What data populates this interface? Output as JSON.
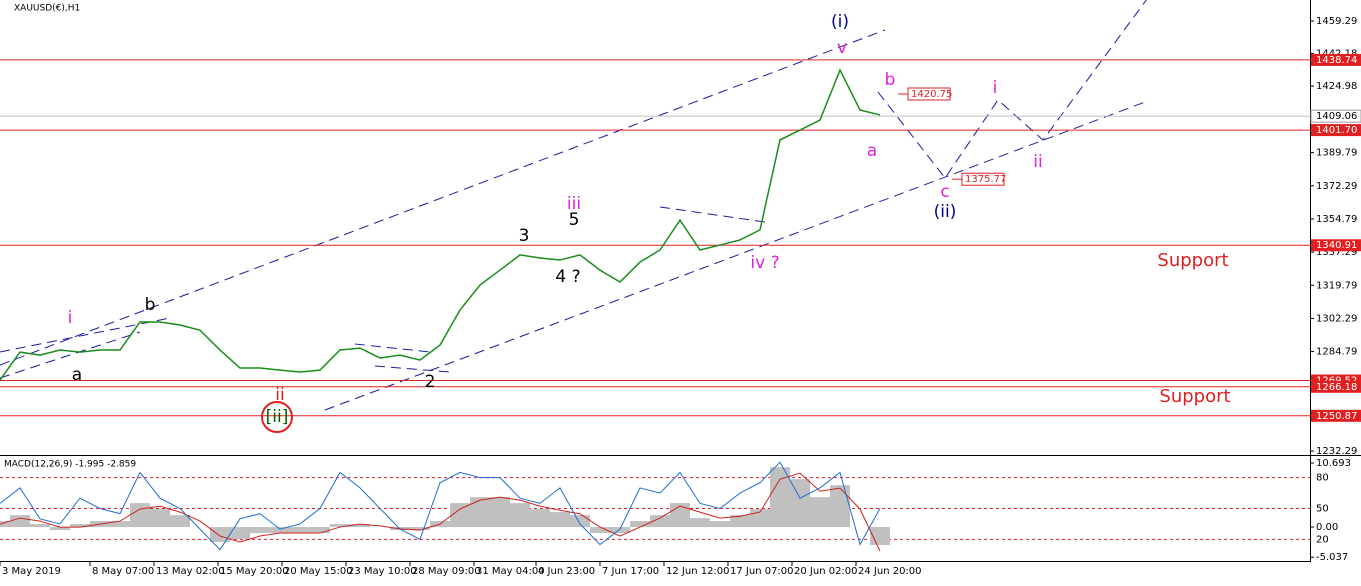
{
  "chart_data": [
    {
      "type": "line",
      "title": "XAUUSD(€),H1",
      "ylim": [
        1230.18,
        1470.38
      ],
      "yticks": [
        1459.29,
        1442.18,
        1424.98,
        1389.79,
        1372.29,
        1354.79,
        1337.29,
        1319.79,
        1302.29,
        1284.79,
        1232.29
      ],
      "series": [
        {
          "color": "#1a8c1a",
          "values": [
            1269.7,
            1284.5,
            1282.9,
            1285.6,
            1284.5,
            1285.6,
            1285.6,
            1300.4,
            1300.4,
            1298.8,
            1296.1,
            1285.6,
            1276.1,
            1276.1,
            1275.0,
            1274.0,
            1275.0,
            1285.6,
            1286.6,
            1281.4,
            1282.9,
            1280.3,
            1288.2,
            1306.7,
            1319.9,
            1327.8,
            1335.8,
            1334.2,
            1333.1,
            1335.8,
            1327.8,
            1321.5,
            1332.0,
            1338.4,
            1354.2,
            1338.4,
            1341.0,
            1343.7,
            1349.0,
            1396.5,
            1401.7,
            1407.0,
            1433.4,
            1412.3,
            1409.7
          ]
        }
      ],
      "levels": [
        1438.74,
        {
          "value": 1401.7,
          "label": "1401.70"
        },
        1340.91,
        1269.52,
        1266.18,
        1250.87
      ],
      "current": 1409.06,
      "targets": [
        1420.75,
        1375.77
      ],
      "annotations": [
        {
          "text": "(i)",
          "color": "#00008b"
        },
        {
          "text": "v",
          "color": "#e020e0"
        },
        {
          "text": "b",
          "color": "#e020e0"
        },
        {
          "text": "a",
          "color": "#e020e0"
        },
        {
          "text": "i",
          "color": "#e020e0"
        },
        {
          "text": "ii",
          "color": "#e020e0"
        },
        {
          "text": "c",
          "color": "#e020e0"
        },
        {
          "text": "(ii)",
          "color": "#00008b"
        },
        {
          "text": "iii",
          "color": "#e020e0"
        },
        {
          "text": "5",
          "color": "#000000"
        },
        {
          "text": "3",
          "color": "#000000"
        },
        {
          "text": "4 ?",
          "color": "#000000"
        },
        {
          "text": "iv ?",
          "color": "#e020e0"
        },
        {
          "text": "i",
          "color": "#e020e0"
        },
        {
          "text": "b",
          "color": "#000000"
        },
        {
          "text": "a",
          "color": "#000000"
        },
        {
          "text": "ii",
          "color": "#e02020"
        },
        {
          "text": "[ii]",
          "color": "#006400"
        },
        {
          "text": "2",
          "color": "#000000"
        },
        {
          "text": "Support",
          "color": "#e02020"
        },
        {
          "text": "Support",
          "color": "#e02020"
        }
      ]
    },
    {
      "type": "macd",
      "title": "MACD(12,26,9) -1.995 -2.859",
      "ylim": [
        -5.5,
        11.7
      ],
      "yticks": [
        10.693,
        {
          "value": 0,
          "label": "0.00"
        },
        -5.037
      ],
      "y2lim": [
        0,
        100
      ],
      "y2ticks": [
        80,
        50,
        20
      ],
      "series": [
        {
          "color": "#c0c0c0",
          "values": [
            1,
            2,
            0.5,
            -0.5,
            0.5,
            1,
            1,
            4,
            3,
            2,
            0,
            -2.5,
            -2,
            -1,
            -1,
            -1,
            -1,
            0.5,
            0.5,
            0,
            -0.5,
            -0.5,
            1,
            4,
            5,
            5,
            4,
            3,
            2.5,
            2,
            -1,
            -1,
            1,
            2,
            4,
            1.5,
            1,
            2,
            3,
            10,
            8,
            5,
            7,
            0,
            -3
          ]
        },
        {
          "color": "#d02020",
          "values": [
            0.5,
            1.5,
            1,
            0,
            0,
            0.5,
            1,
            3,
            3.5,
            2.5,
            1,
            -1.5,
            -2.5,
            -1.5,
            -1,
            -1,
            -1,
            0,
            0.5,
            0.2,
            -0.3,
            -0.5,
            0.5,
            3,
            4.5,
            5,
            4.5,
            3.5,
            2.8,
            2.2,
            0,
            -1.5,
            0,
            1.5,
            3.5,
            2.5,
            1.5,
            1.8,
            2.5,
            8,
            9,
            6,
            6.5,
            3,
            -4
          ]
        },
        {
          "color": "#1e6fd0",
          "axis": "y2",
          "values": [
            55,
            70,
            40,
            35,
            60,
            50,
            45,
            85,
            60,
            50,
            30,
            10,
            40,
            45,
            30,
            35,
            50,
            85,
            70,
            50,
            30,
            20,
            75,
            85,
            80,
            80,
            60,
            55,
            70,
            35,
            15,
            30,
            70,
            65,
            85,
            55,
            50,
            65,
            75,
            95,
            60,
            70,
            85,
            15,
            50
          ]
        }
      ],
      "xticks": [
        {
          "value": 0,
          "label": "3 May 2019"
        },
        {
          "value": 4.5,
          "label": "8 May 07:00"
        },
        {
          "value": 7.7,
          "label": "13 May 02:00"
        },
        {
          "value": 10.9,
          "label": "15 May 20:00"
        },
        {
          "value": 14.1,
          "label": "20 May 15:00"
        },
        {
          "value": 17.3,
          "label": "23 May 10:00"
        },
        {
          "value": 20.5,
          "label": "28 May 09:00"
        },
        {
          "value": 23.7,
          "label": "31 May 04:00"
        },
        {
          "value": 26.8,
          "label": "4 Jun 23:00"
        },
        {
          "value": 30,
          "label": "7 Jun 17:00"
        },
        {
          "value": 33.2,
          "label": "12 Jun 12:00"
        },
        {
          "value": 36.4,
          "label": "17 Jun 07:00"
        },
        {
          "value": 39.6,
          "label": "20 Jun 02:00"
        },
        {
          "value": 42.8,
          "label": "24 Jun 20:00"
        }
      ]
    }
  ]
}
